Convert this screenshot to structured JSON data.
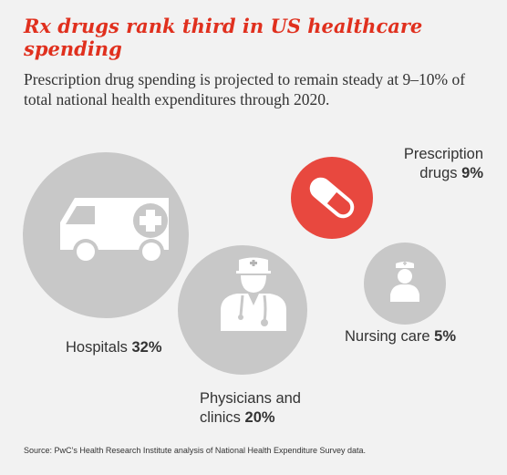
{
  "header": {
    "title": "Rx drugs rank third in US healthcare spending",
    "subtitle": "Prescription drug spending is projected to remain steady at 9–10% of total national health expenditures through 2020."
  },
  "categories": [
    {
      "name": "Hospitals",
      "value": "32%",
      "icon": "ambulance-icon",
      "color": "#c8c8c8"
    },
    {
      "name": "Physicians and clinics",
      "name_line1": "Physicians and",
      "name_line2": "clinics",
      "value": "20%",
      "icon": "doctor-icon",
      "color": "#c8c8c8"
    },
    {
      "name": "Prescription drugs",
      "name_line1": "Prescription",
      "name_line2": "drugs",
      "value": "9%",
      "icon": "pill-icon",
      "color": "#e8483f"
    },
    {
      "name": "Nursing care",
      "value": "5%",
      "icon": "nurse-icon",
      "color": "#c8c8c8"
    }
  ],
  "footer": {
    "source": "Source: PwC’s Health Research Institute analysis of National Health Expenditure Survey data."
  },
  "colors": {
    "title": "#e0301e",
    "text": "#333333",
    "bubble_gray": "#c8c8c8",
    "bubble_red": "#e8483f",
    "overlap": "#b4b4b4",
    "background": "#f2f2f2"
  }
}
